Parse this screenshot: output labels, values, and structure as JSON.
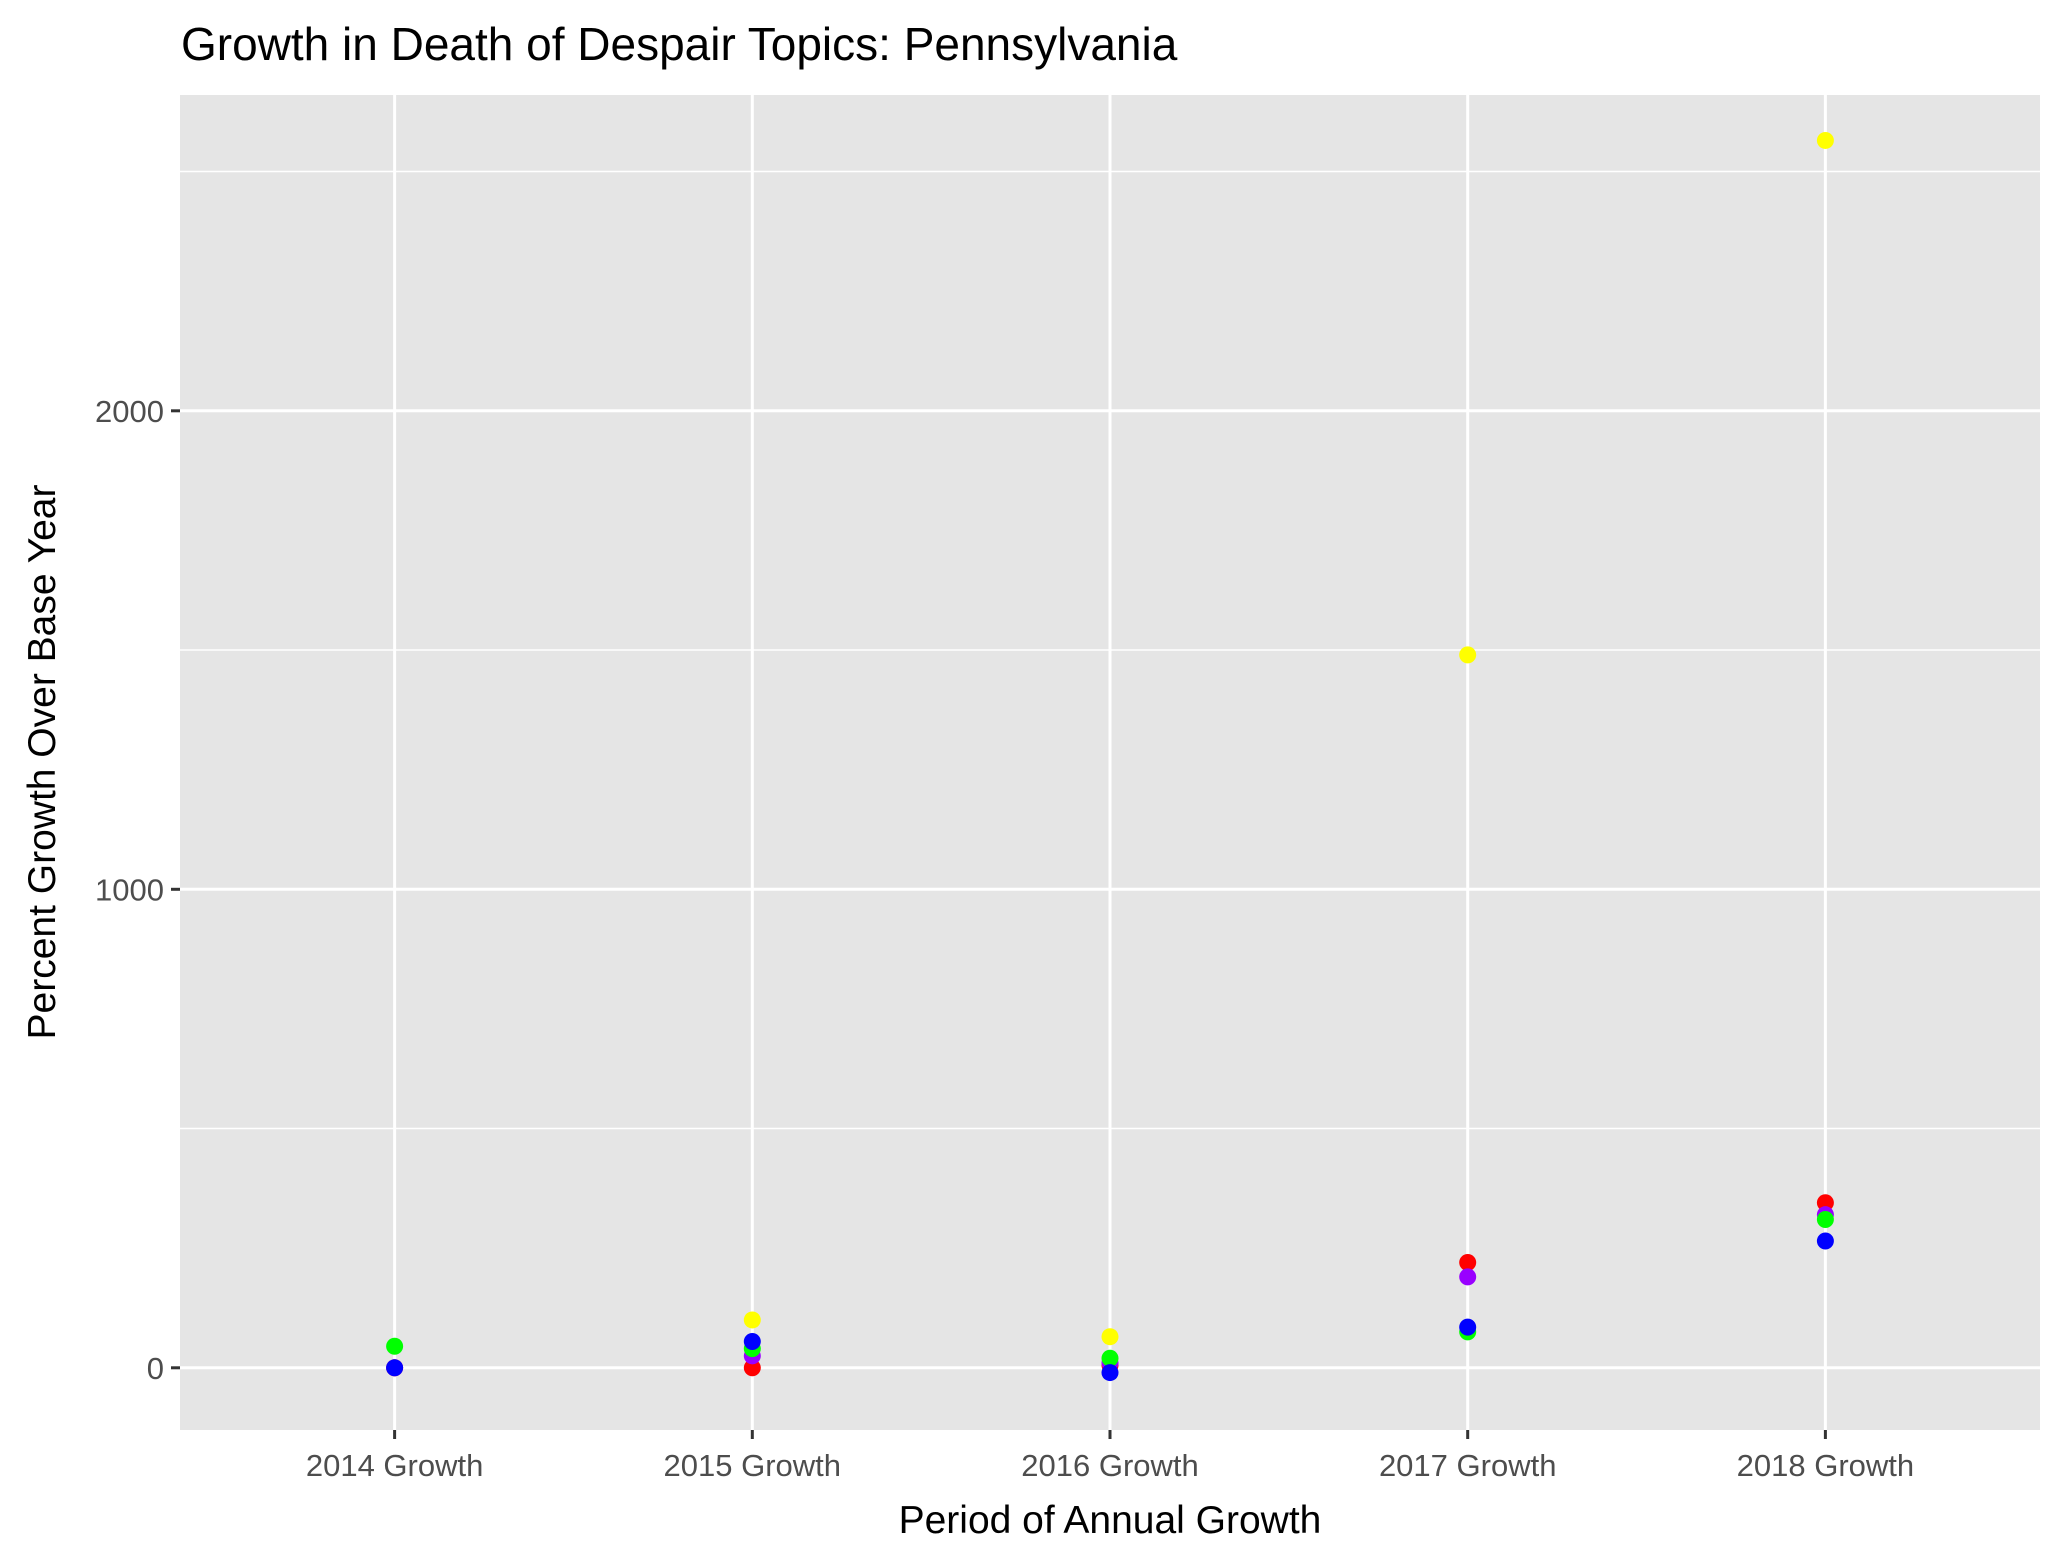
{
  "chart_data": {
    "type": "scatter",
    "title": "Growth in Death of Despair Topics: Pennsylvania",
    "xlabel": "Period of Annual Growth",
    "ylabel": "Percent Growth Over Base Year",
    "categories": [
      "2014 Growth",
      "2015 Growth",
      "2016 Growth",
      "2017 Growth",
      "2018 Growth"
    ],
    "yticks": [
      0,
      1000,
      2000
    ],
    "ytick_labels": [
      "0",
      "1000",
      "2000"
    ],
    "ylim": [
      -130,
      2660
    ],
    "grid": true,
    "legend": "none",
    "series": [
      {
        "color": "#ffff00",
        "values": [
          0,
          100,
          65,
          1490,
          2565
        ]
      },
      {
        "color": "#ff0000",
        "values": [
          0,
          0,
          5,
          220,
          345
        ]
      },
      {
        "color": "#9900ff",
        "values": [
          0,
          25,
          10,
          190,
          320
        ]
      },
      {
        "color": "#00ff00",
        "values": [
          45,
          40,
          20,
          75,
          310
        ]
      },
      {
        "color": "#0000ff",
        "values": [
          0,
          55,
          -10,
          85,
          265
        ]
      }
    ]
  }
}
